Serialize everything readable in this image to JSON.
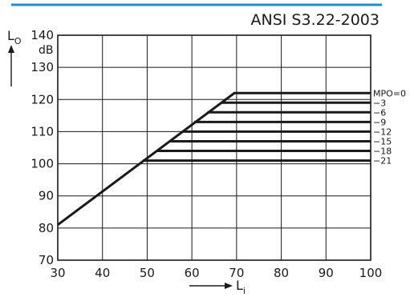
{
  "colors": {
    "accent_rule": "#1e8fc9",
    "ink": "#1a1a1a",
    "grid": "#1a1a1a"
  },
  "chart_data": {
    "type": "line",
    "title": "ANSI S3.22-2003",
    "xlabel": {
      "main": "L",
      "sub": "i"
    },
    "ylabel": {
      "main": "L",
      "sub": "O"
    },
    "yunit": "dB",
    "xlim": [
      30,
      100
    ],
    "ylim": [
      70,
      140
    ],
    "xticks": [
      30,
      40,
      50,
      60,
      70,
      80,
      90,
      100
    ],
    "yticks": [
      70,
      80,
      90,
      100,
      110,
      120,
      130,
      140
    ],
    "grid": true,
    "mpo_prefix": "MPO=",
    "series": [
      {
        "label": "0",
        "points": [
          [
            30,
            81
          ],
          [
            69.5,
            122
          ],
          [
            100,
            122
          ]
        ]
      },
      {
        "label": "−3",
        "points": [
          [
            66.5,
            119
          ],
          [
            100,
            119
          ]
        ]
      },
      {
        "label": "−6",
        "points": [
          [
            63.5,
            116
          ],
          [
            100,
            116
          ]
        ]
      },
      {
        "label": "−9",
        "points": [
          [
            60.5,
            113
          ],
          [
            100,
            113
          ]
        ]
      },
      {
        "label": "−12",
        "points": [
          [
            58,
            110
          ],
          [
            100,
            110
          ]
        ]
      },
      {
        "label": "−15",
        "points": [
          [
            55,
            107
          ],
          [
            100,
            107
          ]
        ]
      },
      {
        "label": "−18",
        "points": [
          [
            52,
            104
          ],
          [
            100,
            104
          ]
        ]
      },
      {
        "label": "−21",
        "points": [
          [
            49,
            101
          ],
          [
            100,
            101
          ]
        ]
      }
    ]
  }
}
